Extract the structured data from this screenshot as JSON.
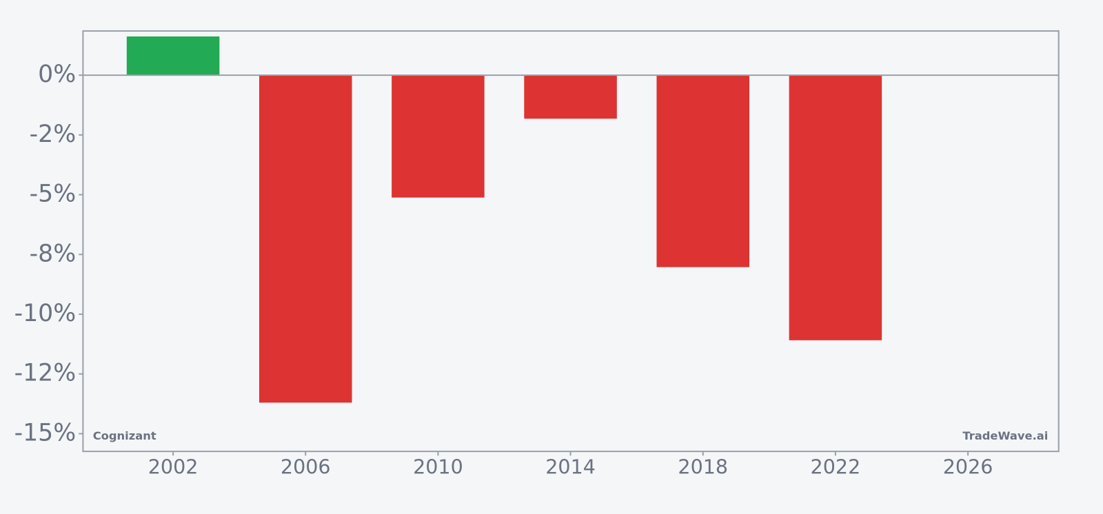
{
  "chart_data": {
    "type": "bar",
    "x": [
      2002,
      2006,
      2010,
      2014,
      2018,
      2022
    ],
    "values": [
      1.62,
      -13.7,
      -5.12,
      -1.82,
      -8.03,
      -11.09
    ],
    "positive_color": "#22aa55",
    "negative_color": "#dd3333",
    "xlim": [
      1999.28,
      2028.74
    ],
    "xticks": [
      2002,
      2006,
      2010,
      2014,
      2018,
      2022,
      2026
    ],
    "ylim": [
      -15.74,
      1.85
    ],
    "yticks": [
      {
        "value": 0,
        "label": "0%"
      },
      {
        "value": -2.5,
        "label": "-2%"
      },
      {
        "value": -5,
        "label": "-5%"
      },
      {
        "value": -7.5,
        "label": "-8%"
      },
      {
        "value": -10,
        "label": "-10%"
      },
      {
        "value": -12.5,
        "label": "-12%"
      },
      {
        "value": -15,
        "label": "-15%"
      }
    ],
    "annotations": [
      "Cognizant",
      "TradeWave.ai"
    ]
  }
}
